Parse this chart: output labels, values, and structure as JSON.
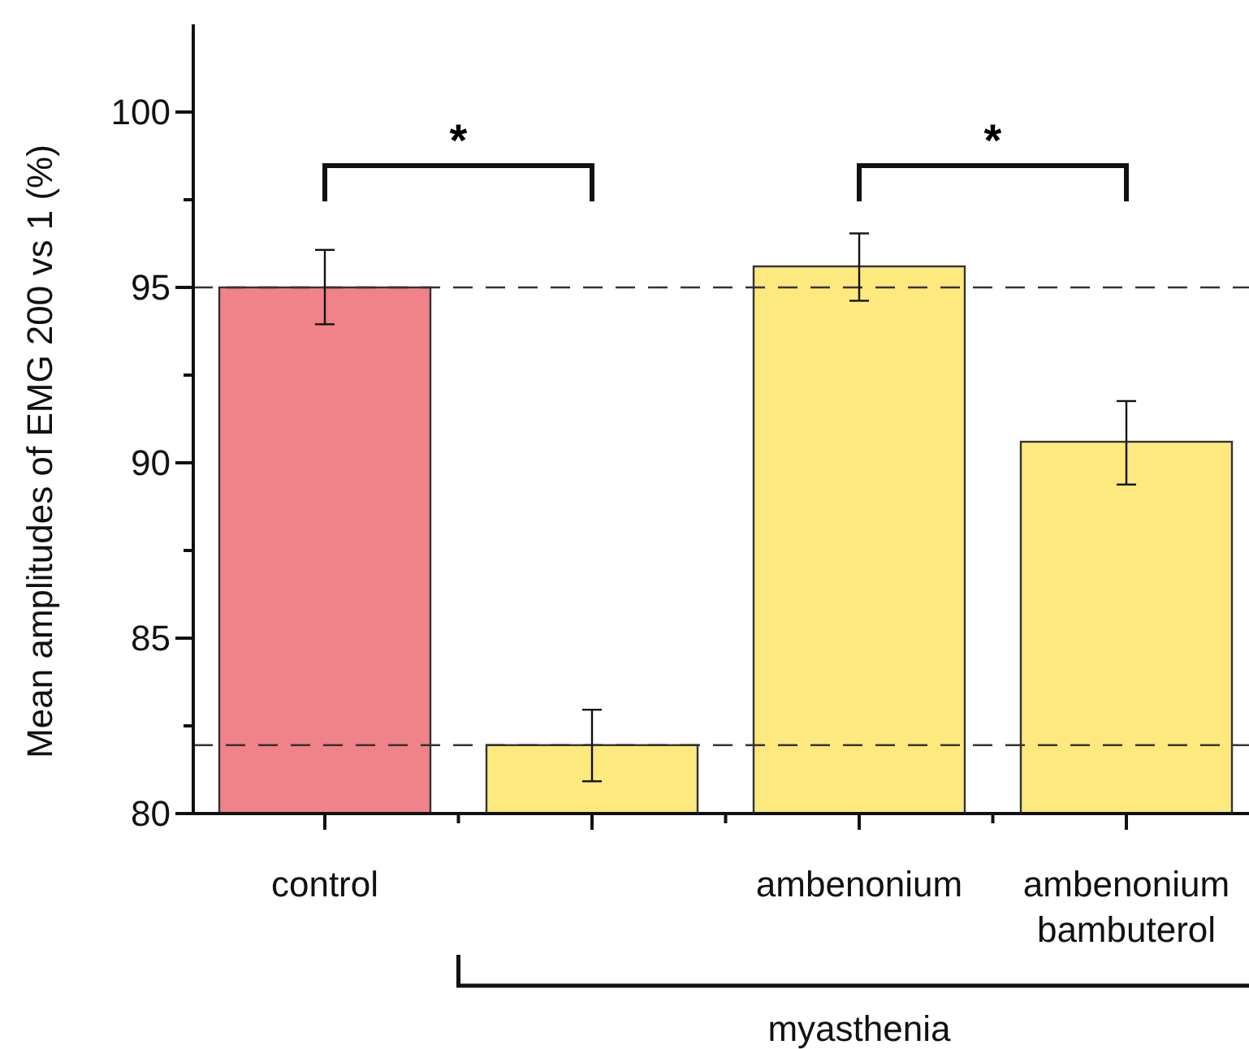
{
  "chart_data": {
    "type": "bar",
    "ylabel": "Mean amplitudes of EMG 200 vs 1 (%)",
    "categories": [
      "control",
      null,
      "ambenonium",
      "ambenonium\nbambuterol"
    ],
    "values": [
      95,
      81.95,
      95.6,
      90.6
    ],
    "colors": [
      "#f08289",
      "#fee97e",
      "#fee97e",
      "#fee97e"
    ],
    "errors": [
      [
        93.95,
        96.07
      ],
      [
        80.92,
        82.96
      ],
      [
        94.62,
        96.54
      ],
      [
        89.38,
        91.76
      ]
    ],
    "ylim": [
      80,
      102.5
    ],
    "yticks": [
      80,
      {
        "value": 82.5,
        "label": null
      },
      85,
      {
        "value": 87.5,
        "label": null
      },
      90,
      {
        "value": 92.5,
        "label": null
      },
      95,
      {
        "value": 97.5,
        "label": null
      },
      100
    ],
    "ref_lines": [
      {
        "axis": "y",
        "value": 95,
        "color": "#333333",
        "line_style": "dashed"
      },
      {
        "axis": "y",
        "value": 81.95,
        "color": "#333333",
        "line_style": "dashed"
      }
    ],
    "annotations": [
      "*",
      "*",
      "myasthenia"
    ],
    "grid": false
  }
}
